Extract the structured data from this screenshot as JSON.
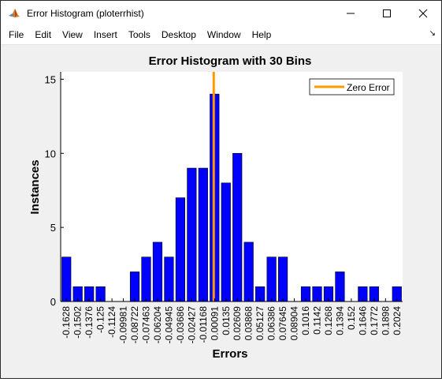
{
  "window": {
    "title": "Error Histogram (ploterrhist)",
    "icon": "matlab-figure-icon",
    "buttons": {
      "minimize": "—",
      "maximize": "☐",
      "close": "✕"
    }
  },
  "menubar": {
    "items": [
      "File",
      "Edit",
      "View",
      "Insert",
      "Tools",
      "Desktop",
      "Window",
      "Help"
    ],
    "dock_arrow": "↘"
  },
  "colors": {
    "bar_fill": "#0000ff",
    "bar_edge": "#000000",
    "zero_line": "#ff9900",
    "axes_bg": "#ffffff",
    "figure_bg": "#f0f0f0"
  },
  "chart_data": {
    "type": "bar",
    "title": "Error Histogram with 30 Bins",
    "xlabel": "Errors",
    "ylabel": "Instances",
    "ylim": [
      0,
      15.5
    ],
    "yticks": [
      0,
      5,
      10,
      15
    ],
    "categories": [
      "-0.1628",
      "-0.1502",
      "-0.1376",
      "-0.125",
      "-0.1124",
      "-0.09981",
      "-0.08722",
      "-0.07463",
      "-0.06204",
      "-0.04945",
      "-0.03686",
      "-0.02427",
      "-0.01168",
      "0.00091",
      "0.0135",
      "0.02609",
      "0.03868",
      "0.05127",
      "0.06386",
      "0.07645",
      "0.08904",
      "0.1016",
      "0.1142",
      "0.1268",
      "0.1394",
      "0.152",
      "0.1646",
      "0.1772",
      "0.1898",
      "0.2024"
    ],
    "values": [
      3,
      1,
      1,
      1,
      0,
      0,
      2,
      3,
      4,
      3,
      7,
      9,
      9,
      14,
      8,
      10,
      4,
      1,
      3,
      3,
      0,
      1,
      1,
      1,
      2,
      0,
      1,
      1,
      0,
      1
    ],
    "zero_line": {
      "x": 0,
      "label": "Zero Error"
    },
    "legend": {
      "position": "top-right",
      "entries": [
        "Zero Error"
      ]
    },
    "grid": false
  }
}
